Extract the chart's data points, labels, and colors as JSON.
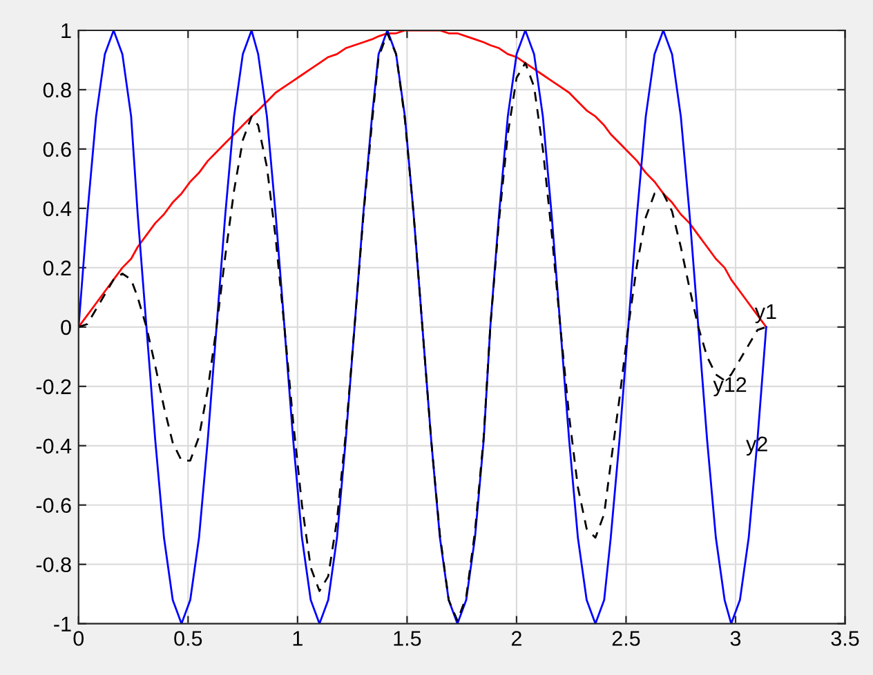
{
  "chart_data": {
    "type": "line",
    "x": [
      0,
      0.04,
      0.08,
      0.12,
      0.16,
      0.2,
      0.24,
      0.27,
      0.31,
      0.35,
      0.39,
      0.43,
      0.47,
      0.51,
      0.55,
      0.59,
      0.63,
      0.67,
      0.71,
      0.75,
      0.79,
      0.82,
      0.86,
      0.9,
      0.94,
      0.98,
      1.02,
      1.06,
      1.1,
      1.14,
      1.18,
      1.22,
      1.26,
      1.3,
      1.34,
      1.37,
      1.41,
      1.45,
      1.49,
      1.53,
      1.57,
      1.61,
      1.65,
      1.69,
      1.73,
      1.77,
      1.81,
      1.85,
      1.88,
      1.92,
      1.96,
      2,
      2.04,
      2.08,
      2.12,
      2.16,
      2.2,
      2.24,
      2.28,
      2.32,
      2.36,
      2.4,
      2.43,
      2.47,
      2.51,
      2.55,
      2.59,
      2.63,
      2.67,
      2.71,
      2.75,
      2.79,
      2.83,
      2.87,
      2.91,
      2.95,
      2.98,
      3.02,
      3.06,
      3.1,
      3.14
    ],
    "series": [
      {
        "color": "#ff0000",
        "line_style": "solid",
        "values": [
          0,
          0.04,
          0.08,
          0.12,
          0.16,
          0.2,
          0.23,
          0.27,
          0.31,
          0.35,
          0.38,
          0.42,
          0.45,
          0.49,
          0.52,
          0.56,
          0.59,
          0.62,
          0.65,
          0.68,
          0.71,
          0.73,
          0.76,
          0.79,
          0.81,
          0.83,
          0.85,
          0.87,
          0.89,
          0.91,
          0.92,
          0.94,
          0.95,
          0.96,
          0.97,
          0.98,
          0.99,
          0.99,
          1,
          1,
          1,
          1,
          1,
          0.99,
          0.99,
          0.98,
          0.97,
          0.96,
          0.95,
          0.94,
          0.92,
          0.91,
          0.89,
          0.87,
          0.85,
          0.83,
          0.81,
          0.79,
          0.76,
          0.73,
          0.71,
          0.68,
          0.65,
          0.62,
          0.59,
          0.56,
          0.52,
          0.49,
          0.45,
          0.42,
          0.38,
          0.35,
          0.31,
          0.27,
          0.23,
          0.2,
          0.16,
          0.12,
          0.08,
          0.04,
          0
        ]
      },
      {
        "color": "#0000ff",
        "line_style": "solid",
        "values": [
          0,
          0.38,
          0.71,
          0.92,
          1,
          0.92,
          0.71,
          0.38,
          0,
          -0.38,
          -0.71,
          -0.92,
          -1,
          -0.92,
          -0.71,
          -0.38,
          0,
          0.38,
          0.71,
          0.92,
          1,
          0.92,
          0.71,
          0.38,
          0,
          -0.38,
          -0.71,
          -0.92,
          -1,
          -0.92,
          -0.71,
          -0.38,
          0,
          0.38,
          0.71,
          0.92,
          1,
          0.92,
          0.71,
          0.38,
          0,
          -0.38,
          -0.71,
          -0.92,
          -1,
          -0.92,
          -0.71,
          -0.38,
          0,
          0.38,
          0.71,
          0.92,
          1,
          0.92,
          0.71,
          0.38,
          0,
          -0.38,
          -0.71,
          -0.92,
          -1,
          -0.92,
          -0.71,
          -0.38,
          0,
          0.38,
          0.71,
          0.92,
          1,
          0.92,
          0.71,
          0.38,
          0,
          -0.38,
          -0.71,
          -0.92,
          -1,
          -0.92,
          -0.71,
          -0.38,
          0
        ]
      },
      {
        "color": "#000000",
        "line_style": "dashed",
        "values": [
          0,
          0.01,
          0.06,
          0.11,
          0.16,
          0.18,
          0.16,
          0.1,
          0,
          -0.13,
          -0.27,
          -0.39,
          -0.45,
          -0.45,
          -0.37,
          -0.21,
          0,
          0.24,
          0.46,
          0.63,
          0.71,
          0.68,
          0.54,
          0.3,
          0,
          -0.32,
          -0.6,
          -0.81,
          -0.89,
          -0.84,
          -0.65,
          -0.36,
          0,
          0.37,
          0.69,
          0.91,
          0.99,
          0.92,
          0.7,
          0.38,
          0,
          -0.38,
          -0.7,
          -0.92,
          -0.99,
          -0.91,
          -0.69,
          -0.37,
          0,
          0.36,
          0.65,
          0.84,
          0.89,
          0.81,
          0.6,
          0.32,
          0,
          -0.3,
          -0.54,
          -0.68,
          -0.71,
          -0.63,
          -0.46,
          -0.24,
          0,
          0.21,
          0.37,
          0.45,
          0.45,
          0.39,
          0.27,
          0.13,
          0,
          -0.1,
          -0.16,
          -0.18,
          -0.16,
          -0.11,
          -0.06,
          -0.01,
          0
        ]
      }
    ],
    "annotations": [
      {
        "text": "y1",
        "x": 3.14,
        "y": 0
      },
      {
        "text": "y12",
        "x": 2.95,
        "y": -0.18
      },
      {
        "text": "y2",
        "x": 3.1,
        "y": -0.38
      }
    ],
    "xlim": [
      0,
      3.5
    ],
    "xticks": [
      0,
      0.5,
      1,
      1.5,
      2,
      2.5,
      3,
      3.5
    ],
    "ylim": [
      -1,
      1
    ],
    "yticks": [
      -1,
      -0.8,
      -0.6,
      -0.4,
      -0.2,
      0,
      0.2,
      0.4,
      0.6,
      0.8,
      1
    ],
    "grid": true
  }
}
